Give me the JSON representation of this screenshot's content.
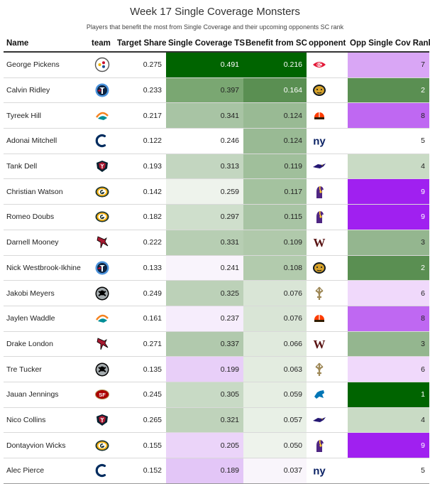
{
  "title": "Week 17 Single Coverage Monsters",
  "subtitle": "Players that benefit the most from Single Coverage and their upcoming opponents SC rank",
  "columns": {
    "name": "Name",
    "team": "team",
    "target_share": "Target Share",
    "sc_ts": "Single Coverage TS",
    "benefit": "Benefit from SC",
    "opponent": "opponent",
    "opp_rank": "Opp Single Cov Rank"
  },
  "chart_data": {
    "type": "table",
    "title": "Week 17 Single Coverage Monsters",
    "subtitle": "Players that benefit the most from Single Coverage and their upcoming opponents SC rank",
    "rows": [
      {
        "name": "George Pickens",
        "team": "PIT",
        "target_share": "0.275",
        "sc_ts": "0.491",
        "benefit": "0.216",
        "opponent": "KC",
        "opp_rank": "7",
        "sc_color": "#006400",
        "benefit_color": "#006400",
        "rank_color": "#d9a6f5"
      },
      {
        "name": "Calvin Ridley",
        "team": "TEN",
        "target_share": "0.233",
        "sc_ts": "0.397",
        "benefit": "0.164",
        "opponent": "JAX",
        "opp_rank": "2",
        "sc_color": "#7aa772",
        "benefit_color": "#5a8f52",
        "rank_color": "#5a8f52"
      },
      {
        "name": "Tyreek Hill",
        "team": "MIA",
        "target_share": "0.217",
        "sc_ts": "0.341",
        "benefit": "0.124",
        "opponent": "CLE",
        "opp_rank": "8",
        "sc_color": "#a8c4a4",
        "benefit_color": "#99ba94",
        "rank_color": "#bf68f2"
      },
      {
        "name": "Adonai Mitchell",
        "team": "IND",
        "target_share": "0.122",
        "sc_ts": "0.246",
        "benefit": "0.124",
        "opponent": "NYG",
        "opp_rank": "5",
        "sc_color": "#ffffff",
        "benefit_color": "#99ba94",
        "rank_color": "#ffffff"
      },
      {
        "name": "Tank Dell",
        "team": "HOU",
        "target_share": "0.193",
        "sc_ts": "0.313",
        "benefit": "0.119",
        "opponent": "BAL",
        "opp_rank": "4",
        "sc_color": "#c3d6c0",
        "benefit_color": "#a0bf9b",
        "rank_color": "#c9dbc5"
      },
      {
        "name": "Christian Watson",
        "team": "GB",
        "target_share": "0.142",
        "sc_ts": "0.259",
        "benefit": "0.117",
        "opponent": "MIN",
        "opp_rank": "9",
        "sc_color": "#eef3ec",
        "benefit_color": "#a4c29f",
        "rank_color": "#a020f0"
      },
      {
        "name": "Romeo Doubs",
        "team": "GB",
        "target_share": "0.182",
        "sc_ts": "0.297",
        "benefit": "0.115",
        "opponent": "MIN",
        "opp_rank": "9",
        "sc_color": "#cfdfcc",
        "benefit_color": "#a8c4a4",
        "rank_color": "#a020f0"
      },
      {
        "name": "Darnell Mooney",
        "team": "ATL",
        "target_share": "0.222",
        "sc_ts": "0.331",
        "benefit": "0.109",
        "opponent": "WAS",
        "opp_rank": "3",
        "sc_color": "#b7ceb3",
        "benefit_color": "#b0c9ab",
        "rank_color": "#94b68f"
      },
      {
        "name": "Nick Westbrook-Ikhine",
        "team": "TEN",
        "target_share": "0.133",
        "sc_ts": "0.241",
        "benefit": "0.108",
        "opponent": "JAX",
        "opp_rank": "2",
        "sc_color": "#f9f4fc",
        "benefit_color": "#b2cbad",
        "rank_color": "#5a8f52"
      },
      {
        "name": "Jakobi Meyers",
        "team": "LV",
        "target_share": "0.249",
        "sc_ts": "0.325",
        "benefit": "0.076",
        "opponent": "NO",
        "opp_rank": "6",
        "sc_color": "#bcd1b8",
        "benefit_color": "#d9e5d6",
        "rank_color": "#f0d9fb"
      },
      {
        "name": "Jaylen Waddle",
        "team": "MIA",
        "target_share": "0.161",
        "sc_ts": "0.237",
        "benefit": "0.076",
        "opponent": "CLE",
        "opp_rank": "8",
        "sc_color": "#f6edfc",
        "benefit_color": "#d9e5d6",
        "rank_color": "#bf68f2"
      },
      {
        "name": "Drake London",
        "team": "ATL",
        "target_share": "0.271",
        "sc_ts": "0.337",
        "benefit": "0.066",
        "opponent": "WAS",
        "opp_rank": "3",
        "sc_color": "#b1c9ad",
        "benefit_color": "#e0eadd",
        "rank_color": "#94b68f"
      },
      {
        "name": "Tre Tucker",
        "team": "LV",
        "target_share": "0.135",
        "sc_ts": "0.199",
        "benefit": "0.063",
        "opponent": "NO",
        "opp_rank": "6",
        "sc_color": "#e8cff8",
        "benefit_color": "#e3ece0",
        "rank_color": "#f0d9fb"
      },
      {
        "name": "Jauan Jennings",
        "team": "SF",
        "target_share": "0.245",
        "sc_ts": "0.305",
        "benefit": "0.059",
        "opponent": "DET",
        "opp_rank": "1",
        "sc_color": "#c8dac5",
        "benefit_color": "#e6eee3",
        "rank_color": "#006400"
      },
      {
        "name": "Nico Collins",
        "team": "HOU",
        "target_share": "0.265",
        "sc_ts": "0.321",
        "benefit": "0.057",
        "opponent": "BAL",
        "opp_rank": "4",
        "sc_color": "#bfd3bb",
        "benefit_color": "#e8f0e6",
        "rank_color": "#c9dbc5"
      },
      {
        "name": "Dontayvion Wicks",
        "team": "GB",
        "target_share": "0.155",
        "sc_ts": "0.205",
        "benefit": "0.050",
        "opponent": "MIN",
        "opp_rank": "9",
        "sc_color": "#ebd4f9",
        "benefit_color": "#eef3ec",
        "rank_color": "#a020f0"
      },
      {
        "name": "Alec Pierce",
        "team": "IND",
        "target_share": "0.152",
        "sc_ts": "0.189",
        "benefit": "0.037",
        "opponent": "NYG",
        "opp_rank": "5",
        "sc_color": "#e3c6f7",
        "benefit_color": "#f9f5fb",
        "rank_color": "#ffffff"
      }
    ]
  }
}
